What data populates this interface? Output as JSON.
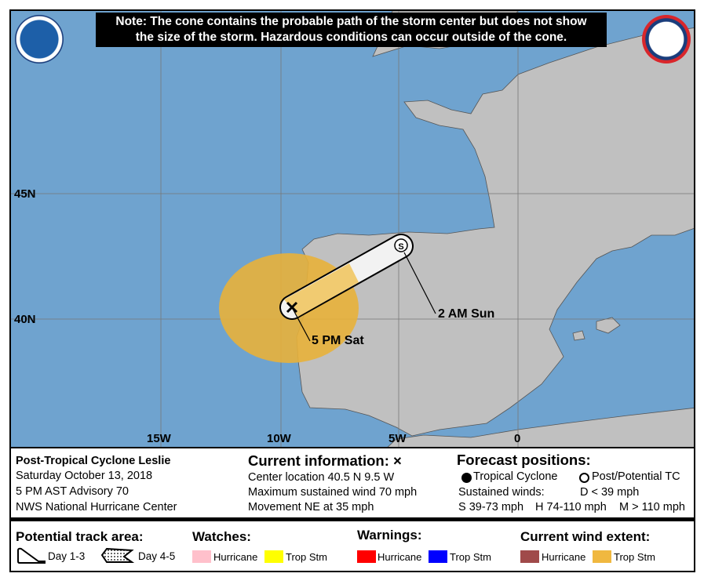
{
  "note": {
    "line1": "Note: The cone contains the probable path of the storm center but does not show",
    "line2": "the size of the storm. Hazardous conditions can occur outside of the cone."
  },
  "logos": {
    "left": "NOAA",
    "right": "NATIONAL WEATHER SERVICE"
  },
  "map": {
    "lat_labels": [
      "45N",
      "40N"
    ],
    "lon_labels": [
      "15W",
      "10W",
      "5W",
      "0"
    ],
    "colors": {
      "water": "#6fa3cf",
      "land": "#c0c0c0",
      "trop_stm_extent": "#e8b13a",
      "cone": "#f2f2f2"
    },
    "points": [
      {
        "label": "5 PM Sat",
        "lat": 40.5,
        "lon": -9.5,
        "symbol": "x"
      },
      {
        "label": "2 AM Sun",
        "lat": 43.0,
        "lon": -5.0,
        "symbol": "S"
      }
    ]
  },
  "info": {
    "storm": "Post-Tropical Cyclone Leslie",
    "date": "Saturday October 13, 2018",
    "advisory": "5 PM AST Advisory 70",
    "center": "NWS National Hurricane Center",
    "current_title": "Current information: ×",
    "location": "Center location 40.5 N 9.5 W",
    "wind": "Maximum sustained wind 70 mph",
    "movement": "Movement NE at 35 mph",
    "forecast_title": "Forecast positions:",
    "tc": "Tropical Cyclone",
    "ptc": "Post/Potential TC",
    "sustained": "Sustained winds:",
    "d": "D < 39 mph",
    "s": "S 39-73 mph",
    "hh": "H 74-110 mph",
    "m": "M > 110 mph"
  },
  "legend": {
    "track_title": "Potential track area:",
    "day13": "Day 1-3",
    "day45": "Day 4-5",
    "watches_title": "Watches:",
    "warnings_title": "Warnings:",
    "extent_title": "Current wind extent:",
    "hurricane": "Hurricane",
    "tropstm": "Trop Stm",
    "colors": {
      "hurricane_watch": "#ffc0cb",
      "trop_stm_watch": "#ffff00",
      "hurricane_warning": "#ff0000",
      "trop_stm_warning": "#0000ff",
      "hurricane_extent": "#a04a4a",
      "trop_stm_extent": "#f0b840"
    }
  }
}
